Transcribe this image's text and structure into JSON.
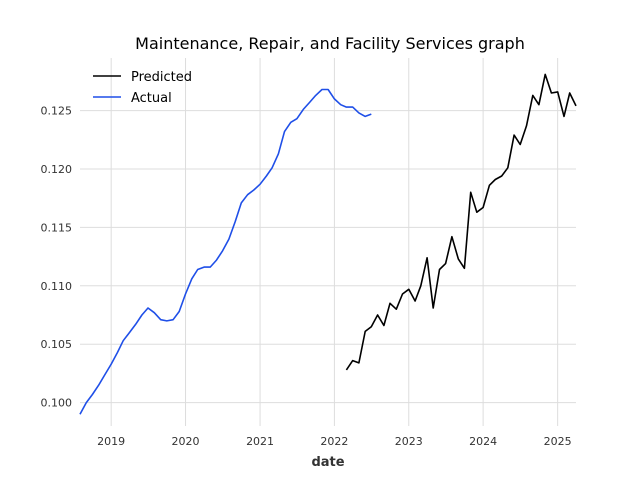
{
  "chart_data": {
    "type": "line",
    "title": "Maintenance, Repair, and Facility Services graph",
    "xlabel": "date",
    "ylabel": "",
    "xlim": [
      "2018-08-01",
      "2025-04-01"
    ],
    "ylim": [
      0.098,
      0.1295
    ],
    "x_ticks": [
      "2019",
      "2020",
      "2021",
      "2022",
      "2023",
      "2024",
      "2025"
    ],
    "y_ticks": [
      "0.100",
      "0.105",
      "0.110",
      "0.115",
      "0.120",
      "0.125"
    ],
    "grid": true,
    "legend_position": "top-left",
    "series": [
      {
        "name": "Predicted",
        "color": "#000000",
        "x": [
          "2022-03-01",
          "2022-04-01",
          "2022-05-01",
          "2022-06-01",
          "2022-07-01",
          "2022-08-01",
          "2022-09-01",
          "2022-10-01",
          "2022-11-01",
          "2022-12-01",
          "2023-01-01",
          "2023-02-01",
          "2023-03-01",
          "2023-04-01",
          "2023-05-01",
          "2023-06-01",
          "2023-07-01",
          "2023-08-01",
          "2023-09-01",
          "2023-10-01",
          "2023-11-01",
          "2023-12-01",
          "2024-01-01",
          "2024-02-01",
          "2024-03-01",
          "2024-04-01",
          "2024-05-01",
          "2024-06-01",
          "2024-07-01",
          "2024-08-01",
          "2024-09-01",
          "2024-10-01",
          "2024-11-01",
          "2024-12-01",
          "2025-01-01",
          "2025-02-01",
          "2025-03-01",
          "2025-04-01"
        ],
        "values": [
          0.1028,
          0.1036,
          0.1034,
          0.1061,
          0.1065,
          0.1075,
          0.1066,
          0.1085,
          0.108,
          0.1093,
          0.1097,
          0.1087,
          0.11,
          0.1124,
          0.1081,
          0.1114,
          0.1119,
          0.1142,
          0.1123,
          0.1115,
          0.118,
          0.1163,
          0.1167,
          0.1186,
          0.1191,
          0.1194,
          0.1201,
          0.1229,
          0.1221,
          0.1237,
          0.1263,
          0.1255,
          0.1281,
          0.1265,
          0.1266,
          0.1245,
          0.1265,
          0.1254
        ]
      },
      {
        "name": "Actual",
        "color": "#1f4fe8",
        "x": [
          "2018-08-01",
          "2018-09-01",
          "2018-10-01",
          "2018-11-01",
          "2018-12-01",
          "2019-01-01",
          "2019-02-01",
          "2019-03-01",
          "2019-04-01",
          "2019-05-01",
          "2019-06-01",
          "2019-07-01",
          "2019-08-01",
          "2019-09-01",
          "2019-10-01",
          "2019-11-01",
          "2019-12-01",
          "2020-01-01",
          "2020-02-01",
          "2020-03-01",
          "2020-04-01",
          "2020-05-01",
          "2020-06-01",
          "2020-07-01",
          "2020-08-01",
          "2020-09-01",
          "2020-10-01",
          "2020-11-01",
          "2020-12-01",
          "2021-01-01",
          "2021-02-01",
          "2021-03-01",
          "2021-04-01",
          "2021-05-01",
          "2021-06-01",
          "2021-07-01",
          "2021-08-01",
          "2021-09-01",
          "2021-10-01",
          "2021-11-01",
          "2021-12-01",
          "2022-01-01",
          "2022-02-01",
          "2022-03-01",
          "2022-04-01",
          "2022-05-01",
          "2022-06-01",
          "2022-07-01"
        ],
        "values": [
          0.099,
          0.1,
          0.1007,
          0.1015,
          0.1024,
          0.1033,
          0.1043,
          0.1053,
          0.106,
          0.1067,
          0.1075,
          0.1081,
          0.1077,
          0.1071,
          0.107,
          0.1071,
          0.1078,
          0.1093,
          0.1106,
          0.1114,
          0.1116,
          0.1116,
          0.1122,
          0.113,
          0.114,
          0.1155,
          0.1171,
          0.1178,
          0.1182,
          0.1187,
          0.1194,
          0.1201,
          0.1213,
          0.1232,
          0.124,
          0.1243,
          0.1251,
          0.1257,
          0.1263,
          0.1268,
          0.1268,
          0.126,
          0.1255,
          0.1253,
          0.1253,
          0.1248,
          0.1245,
          0.1247
        ]
      }
    ]
  }
}
